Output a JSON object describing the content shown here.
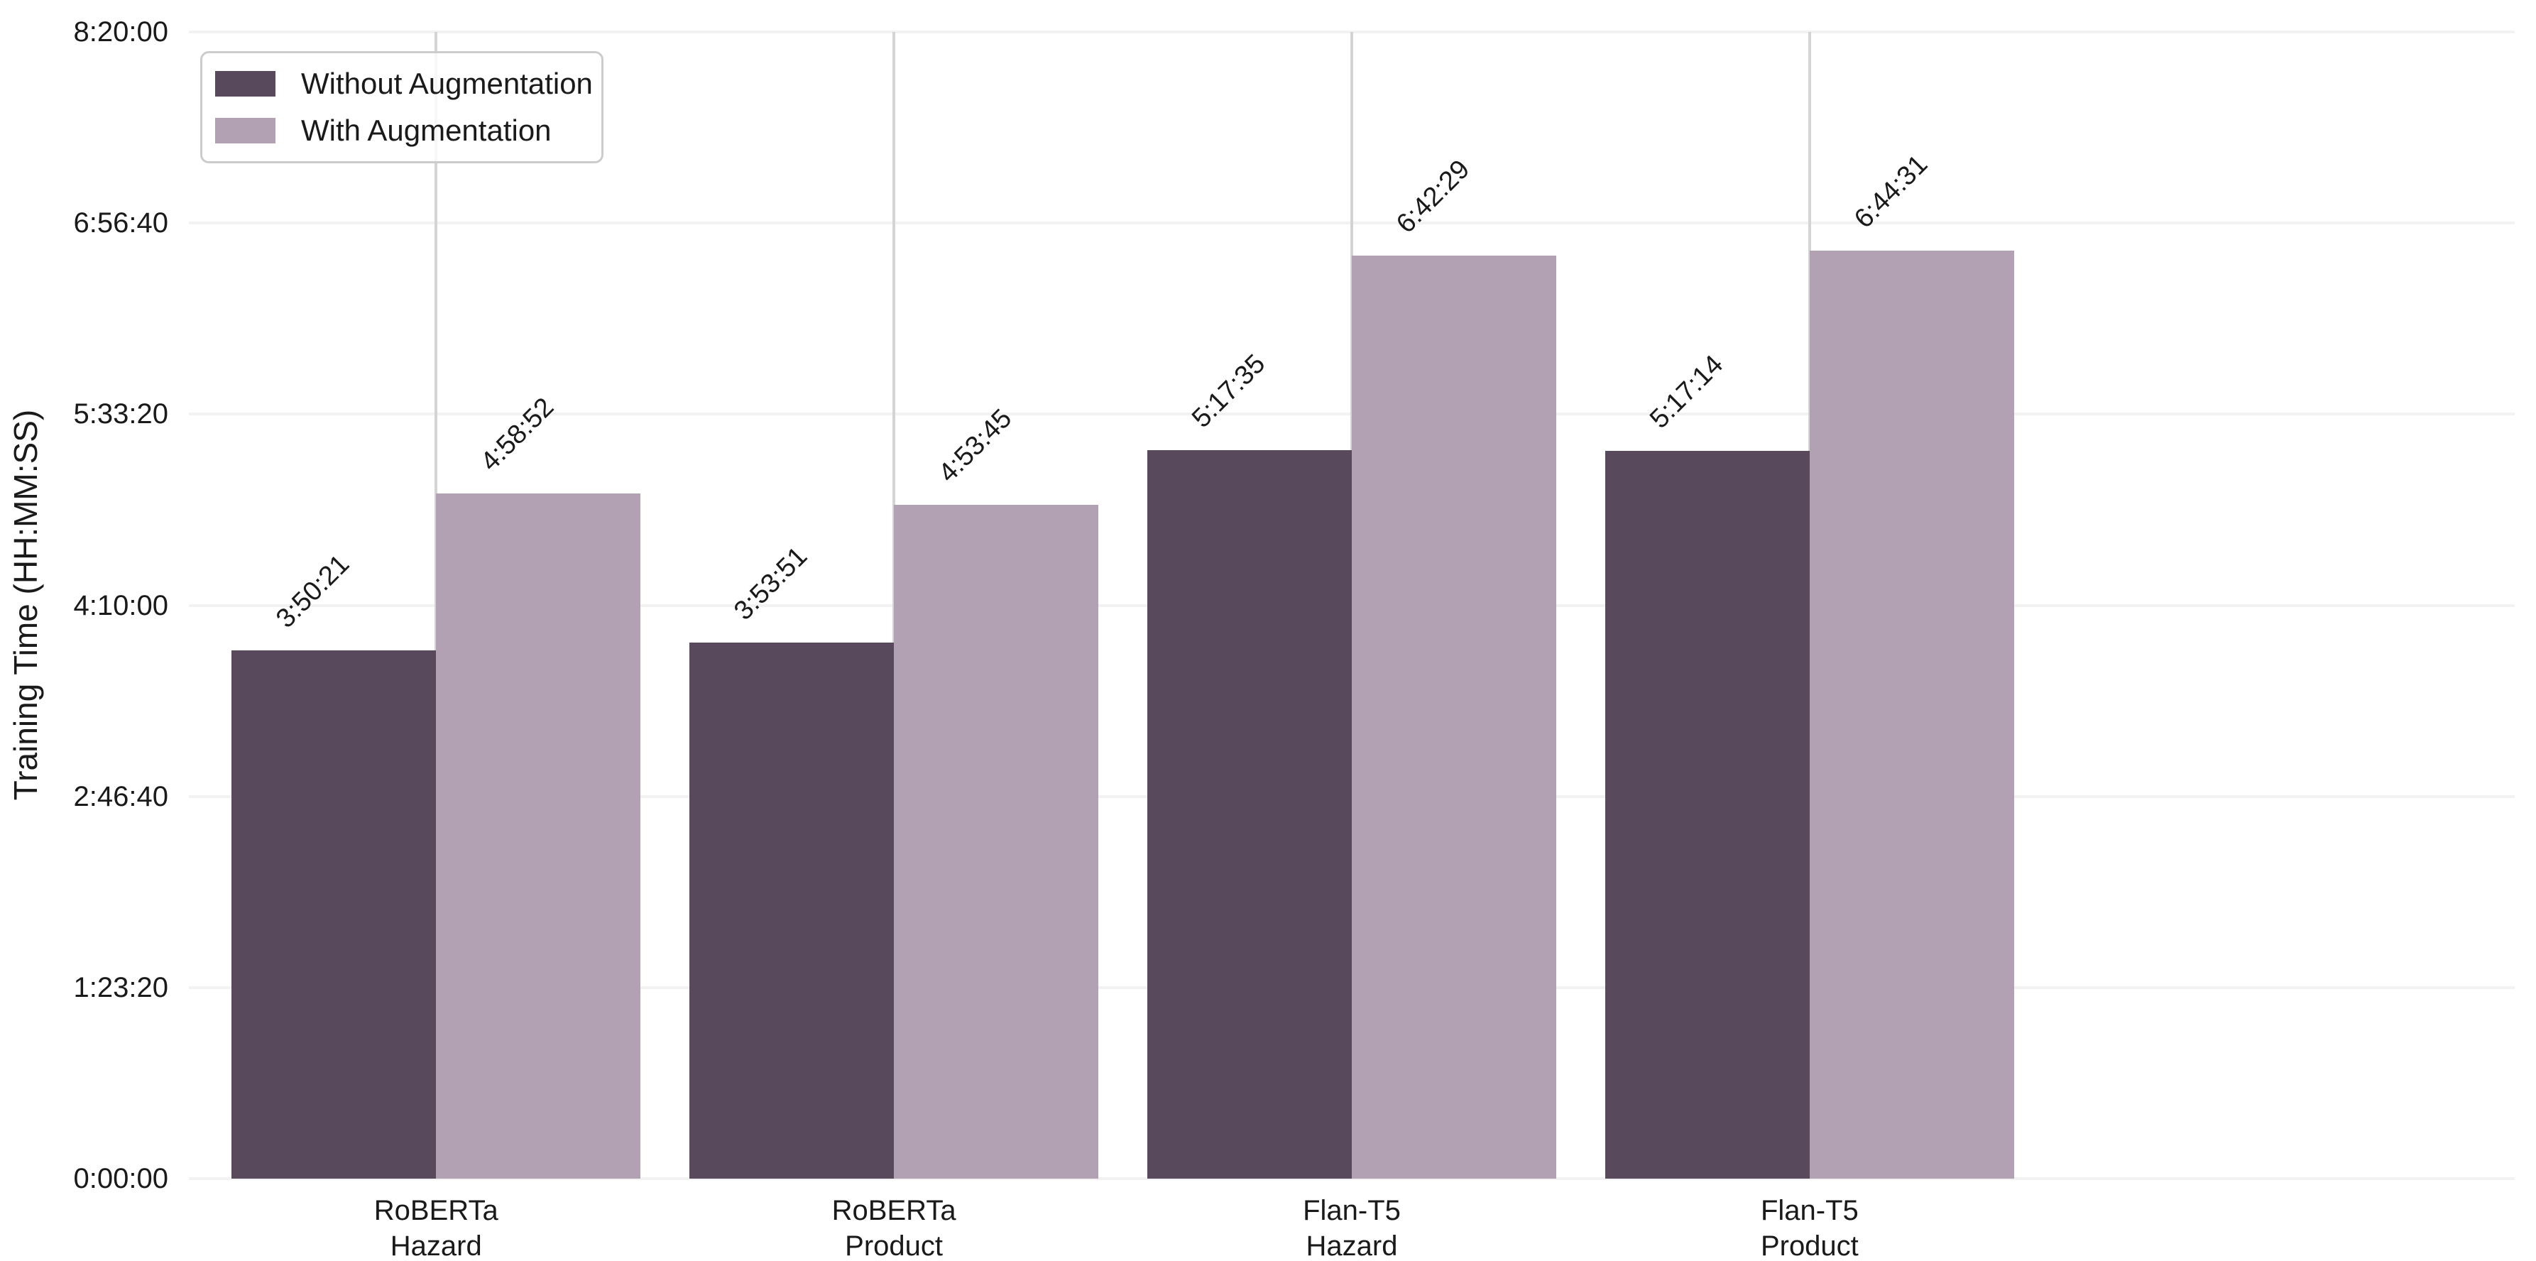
{
  "figure": {
    "background": "#ffffff",
    "text_color": "#1a1a1a"
  },
  "legend": {
    "position": "upper left",
    "items": [
      {
        "label": "Without Augmentation",
        "color": "#584a5c"
      },
      {
        "label": "With Augmentation",
        "color": "#b1a1b2"
      }
    ]
  },
  "chart_data": {
    "type": "bar",
    "title": "",
    "xlabel": "",
    "ylabel": "Training Time (HH:MM:SS)",
    "categories": [
      "RoBERTa\nHazard",
      "RoBERTa\nProduct",
      "Flan-T5\nHazard",
      "Flan-T5\nProduct"
    ],
    "series": [
      {
        "name": "Without Augmentation",
        "color": "#584a5c",
        "values_seconds": [
          13821,
          14031,
          19055,
          19034
        ],
        "labels": [
          "3:50:21",
          "3:53:51",
          "5:17:35",
          "5:17:14"
        ]
      },
      {
        "name": "With Augmentation",
        "color": "#b1a1b2",
        "values_seconds": [
          17932,
          17625,
          24149,
          24271
        ],
        "labels": [
          "4:58:52",
          "4:53:45",
          "6:42:29",
          "6:44:31"
        ]
      }
    ],
    "ylim_seconds": [
      0,
      30000
    ],
    "yticks": [
      {
        "seconds": 0,
        "label": "0:00:00"
      },
      {
        "seconds": 5000,
        "label": "1:23:20"
      },
      {
        "seconds": 10000,
        "label": "2:46:40"
      },
      {
        "seconds": 15000,
        "label": "4:10:00"
      },
      {
        "seconds": 20000,
        "label": "5:33:20"
      },
      {
        "seconds": 25000,
        "label": "6:56:40"
      },
      {
        "seconds": 30000,
        "label": "8:20:00"
      }
    ],
    "grid": {
      "horizontal": true,
      "vertical": true
    },
    "legend_position": "upper left"
  }
}
